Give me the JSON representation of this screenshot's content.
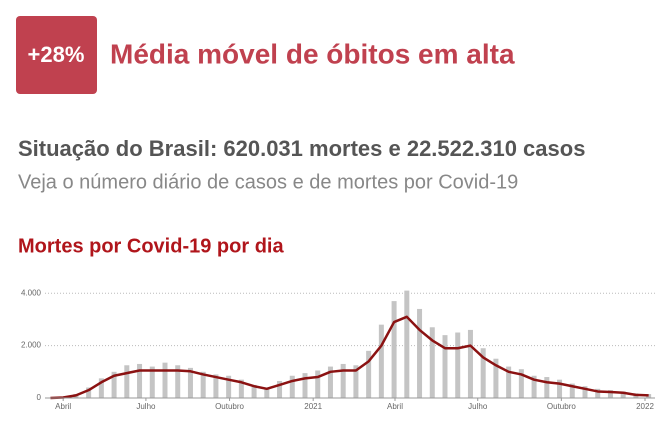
{
  "header": {
    "badge": "+28%",
    "title": "Média móvel de óbitos em alta"
  },
  "summary": {
    "headline": "Situação do Brasil: 620.031 mortes e 22.522.310 casos",
    "subline": "Veja o número diário de casos e de mortes por Covid-19"
  },
  "chart_data": {
    "type": "bar",
    "title": "Mortes por Covid-19 por dia",
    "x": [
      77,
      91,
      105,
      119,
      133,
      147,
      161,
      175,
      189,
      203,
      217,
      231,
      245,
      259,
      273,
      287,
      301,
      315,
      329,
      343,
      357,
      371,
      385,
      399,
      413,
      427,
      441,
      455,
      469,
      483,
      497,
      511,
      525,
      539,
      553,
      567,
      581,
      595,
      609,
      623,
      637,
      651,
      665,
      679,
      693,
      707,
      721,
      735
    ],
    "series": [
      {
        "type": "bar",
        "color": "#c4c4c4",
        "values": [
          0,
          40,
          150,
          400,
          750,
          1000,
          1250,
          1300,
          1200,
          1350,
          1250,
          1150,
          1000,
          900,
          850,
          700,
          500,
          400,
          650,
          850,
          950,
          1050,
          1200,
          1300,
          1250,
          1800,
          2800,
          3700,
          4100,
          3400,
          2700,
          2400,
          2500,
          2600,
          1900,
          1500,
          1200,
          1100,
          850,
          800,
          700,
          550,
          450,
          350,
          300,
          250,
          180,
          150
        ]
      },
      {
        "type": "line",
        "color": "#8b1212",
        "values": [
          0,
          20,
          100,
          300,
          600,
          850,
          950,
          1050,
          1050,
          1050,
          1050,
          1020,
          900,
          800,
          700,
          600,
          450,
          350,
          500,
          650,
          750,
          800,
          1000,
          1050,
          1050,
          1400,
          2000,
          2900,
          3100,
          2600,
          2200,
          1900,
          1900,
          2000,
          1550,
          1250,
          1000,
          900,
          700,
          600,
          550,
          450,
          350,
          250,
          230,
          200,
          120,
          100
        ]
      }
    ],
    "xlim": [
      71,
      742
    ],
    "xticks": [
      {
        "value": 91,
        "label": "Abril"
      },
      {
        "value": 182,
        "label": "Julho"
      },
      {
        "value": 274,
        "label": "Outubro"
      },
      {
        "value": 366,
        "label": "2021"
      },
      {
        "value": 456,
        "label": "Abril"
      },
      {
        "value": 547,
        "label": "Julho"
      },
      {
        "value": 639,
        "label": "Outubro"
      },
      {
        "value": 731,
        "label": "2022"
      }
    ],
    "ylim": [
      0,
      4200
    ],
    "yticks": [
      0,
      {
        "value": 2000,
        "label": "2.000"
      },
      {
        "value": 4000,
        "label": "4.000"
      }
    ],
    "grid": true
  }
}
